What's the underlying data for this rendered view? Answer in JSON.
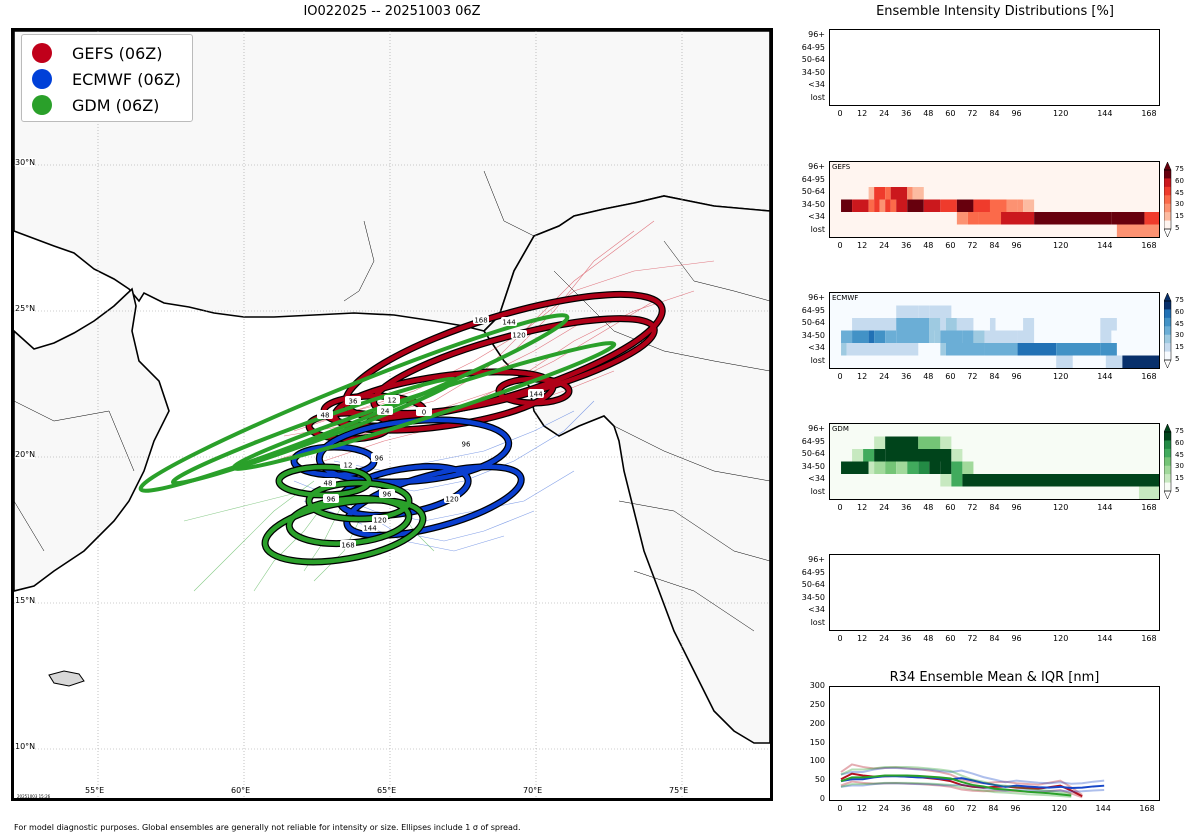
{
  "map": {
    "title": "IO022025 -- 20251003 06Z",
    "legend": [
      {
        "label": "GEFS (06Z)",
        "color": "#c0001a"
      },
      {
        "label": "ECMWF (06Z)",
        "color": "#0040d8"
      },
      {
        "label": "GDM (06Z)",
        "color": "#2aa02a"
      }
    ],
    "lat_labels": [
      "30°N",
      "25°N",
      "20°N",
      "15°N",
      "10°N"
    ],
    "lon_labels": [
      "55°E",
      "60°E",
      "65°E",
      "70°E",
      "75°E"
    ],
    "timestamp": "20251003 15:26",
    "footer": "For model diagnostic purposes. Global ensembles are generally not reliable for intensity or size. Ellipses include 1 σ of spread.",
    "ellipse_labels": {
      "gefs": [
        "168",
        "144",
        "120",
        "144",
        "36",
        "24",
        "12",
        "48",
        "0"
      ],
      "ecmwf": [
        "96",
        "96",
        "96",
        "120",
        "12"
      ],
      "gdm": [
        "96",
        "120",
        "144",
        "168",
        "48"
      ]
    }
  },
  "chart_data": [
    {
      "type": "heatmap",
      "title": "Ensemble Intensity Distributions [%]",
      "name": "",
      "x_ticks": [
        "0",
        "12",
        "24",
        "36",
        "48",
        "60",
        "72",
        "84",
        "96",
        "120",
        "144",
        "168"
      ],
      "y_categories": [
        "96+",
        "64-95",
        "50-64",
        "34-50",
        "<34",
        "lost"
      ],
      "values": []
    },
    {
      "type": "heatmap",
      "name": "GEFS",
      "colormap": "reds",
      "x_ticks": [
        "0",
        "12",
        "24",
        "36",
        "48",
        "60",
        "72",
        "84",
        "96",
        "120",
        "144",
        "168"
      ],
      "y_categories": [
        "96+",
        "64-95",
        "50-64",
        "34-50",
        "<34",
        "lost"
      ],
      "colorbar_ticks": [
        "75",
        "60",
        "45",
        "30",
        "15",
        "5"
      ],
      "rows": {
        "96+": [],
        "64-95": [],
        "50-64": [
          [
            15,
            18,
            15
          ],
          [
            18,
            24,
            55
          ],
          [
            24,
            27,
            45
          ],
          [
            27,
            36,
            70
          ],
          [
            36,
            39,
            30
          ],
          [
            39,
            45,
            15
          ]
        ],
        "34-50": [
          [
            0,
            6,
            80
          ],
          [
            6,
            15,
            65
          ],
          [
            15,
            18,
            45
          ],
          [
            18,
            21,
            60
          ],
          [
            21,
            24,
            30
          ],
          [
            24,
            27,
            60
          ],
          [
            27,
            30,
            45
          ],
          [
            30,
            36,
            70
          ],
          [
            36,
            45,
            75
          ],
          [
            45,
            54,
            70
          ],
          [
            54,
            63,
            55
          ],
          [
            63,
            72,
            75
          ],
          [
            72,
            81,
            50
          ],
          [
            81,
            90,
            35
          ],
          [
            90,
            96,
            20
          ],
          [
            96,
            99,
            30
          ],
          [
            99,
            105,
            15
          ]
        ],
        "<34": [
          [
            63,
            69,
            25
          ],
          [
            69,
            75,
            45
          ],
          [
            75,
            87,
            35
          ],
          [
            87,
            105,
            65
          ],
          [
            105,
            147,
            78
          ],
          [
            147,
            165,
            78
          ],
          [
            165,
            174,
            55
          ]
        ],
        "lost": [
          [
            150,
            174,
            20
          ]
        ]
      }
    },
    {
      "type": "heatmap",
      "name": "ECMWF",
      "colormap": "blues",
      "x_ticks": [
        "0",
        "12",
        "24",
        "36",
        "48",
        "60",
        "72",
        "84",
        "96",
        "120",
        "144",
        "168"
      ],
      "y_categories": [
        "96+",
        "64-95",
        "50-64",
        "34-50",
        "<34",
        "lost"
      ],
      "colorbar_ticks": [
        "75",
        "60",
        "45",
        "30",
        "15",
        "5"
      ],
      "rows": {
        "96+": [],
        "64-95": [
          [
            30,
            42,
            15
          ],
          [
            42,
            48,
            10
          ],
          [
            48,
            60,
            10
          ]
        ],
        "50-64": [
          [
            6,
            30,
            15
          ],
          [
            30,
            48,
            35
          ],
          [
            48,
            54,
            20
          ],
          [
            54,
            57,
            10
          ],
          [
            57,
            63,
            25
          ],
          [
            63,
            72,
            15
          ],
          [
            81,
            84,
            15
          ],
          [
            99,
            105,
            10
          ],
          [
            141,
            150,
            10
          ]
        ],
        "34-50": [
          [
            0,
            6,
            35
          ],
          [
            6,
            15,
            55
          ],
          [
            15,
            18,
            65
          ],
          [
            18,
            24,
            55
          ],
          [
            24,
            30,
            40
          ],
          [
            30,
            48,
            35
          ],
          [
            48,
            51,
            20
          ],
          [
            51,
            54,
            30
          ],
          [
            54,
            66,
            40
          ],
          [
            66,
            72,
            35
          ],
          [
            72,
            78,
            30
          ],
          [
            78,
            96,
            15
          ],
          [
            96,
            105,
            10
          ],
          [
            141,
            147,
            10
          ]
        ],
        "<34": [
          [
            0,
            3,
            25
          ],
          [
            3,
            42,
            15
          ],
          [
            54,
            57,
            25
          ],
          [
            57,
            78,
            35
          ],
          [
            78,
            84,
            40
          ],
          [
            84,
            96,
            45
          ],
          [
            96,
            117,
            70
          ],
          [
            117,
            141,
            50
          ],
          [
            141,
            150,
            55
          ]
        ],
        "lost": [
          [
            117,
            126,
            10
          ],
          [
            144,
            153,
            15
          ],
          [
            153,
            174,
            75
          ]
        ]
      }
    },
    {
      "type": "heatmap",
      "name": "GDM",
      "colormap": "greens",
      "x_ticks": [
        "0",
        "12",
        "24",
        "36",
        "48",
        "60",
        "72",
        "84",
        "96",
        "120",
        "144",
        "168"
      ],
      "y_categories": [
        "96+",
        "64-95",
        "50-64",
        "34-50",
        "<34",
        "lost"
      ],
      "colorbar_ticks": [
        "75",
        "60",
        "45",
        "30",
        "15",
        "5"
      ],
      "rows": {
        "96+": [],
        "64-95": [
          [
            18,
            24,
            15
          ],
          [
            24,
            42,
            78
          ],
          [
            42,
            54,
            35
          ],
          [
            54,
            60,
            15
          ]
        ],
        "50-64": [
          [
            6,
            12,
            15
          ],
          [
            12,
            18,
            55
          ],
          [
            18,
            24,
            78
          ],
          [
            24,
            60,
            78
          ],
          [
            60,
            66,
            15
          ]
        ],
        "34-50": [
          [
            0,
            15,
            78
          ],
          [
            15,
            18,
            15
          ],
          [
            18,
            24,
            30
          ],
          [
            24,
            30,
            35
          ],
          [
            30,
            36,
            25
          ],
          [
            36,
            42,
            55
          ],
          [
            42,
            48,
            65
          ],
          [
            48,
            54,
            78
          ],
          [
            54,
            60,
            78
          ],
          [
            60,
            66,
            60
          ],
          [
            66,
            72,
            30
          ]
        ],
        "<34": [
          [
            54,
            60,
            15
          ],
          [
            60,
            66,
            55
          ],
          [
            66,
            174,
            78
          ]
        ],
        "lost": [
          [
            162,
            174,
            15
          ],
          [
            174,
            177,
            30
          ]
        ]
      }
    },
    {
      "type": "heatmap",
      "name": "",
      "x_ticks": [
        "0",
        "12",
        "24",
        "36",
        "48",
        "60",
        "72",
        "84",
        "96",
        "120",
        "144",
        "168"
      ],
      "y_categories": [
        "96+",
        "64-95",
        "50-64",
        "34-50",
        "<34",
        "lost"
      ],
      "values": []
    },
    {
      "type": "line",
      "title": "R34 Ensemble Mean & IQR [nm]",
      "x_ticks": [
        "0",
        "12",
        "24",
        "36",
        "48",
        "60",
        "72",
        "84",
        "96",
        "120",
        "144",
        "168"
      ],
      "y_ticks": [
        "0",
        "50",
        "100",
        "150",
        "200",
        "250",
        "300"
      ],
      "ylim": [
        0,
        300
      ],
      "xlim": [
        -6,
        174
      ],
      "series": [
        {
          "name": "GEFS",
          "color": "#b3121f",
          "x": [
            0,
            6,
            12,
            18,
            24,
            30,
            36,
            42,
            48,
            54,
            60,
            66,
            72,
            78,
            84,
            90,
            96,
            108,
            120,
            126,
            132
          ],
          "y": [
            55,
            70,
            65,
            62,
            63,
            64,
            62,
            61,
            58,
            55,
            50,
            40,
            35,
            33,
            35,
            36,
            33,
            30,
            38,
            25,
            10
          ]
        },
        {
          "name": "ECMWF",
          "color": "#1747c8",
          "x": [
            0,
            6,
            12,
            18,
            24,
            30,
            36,
            42,
            48,
            54,
            60,
            66,
            72,
            78,
            84,
            90,
            96,
            102,
            108,
            114,
            120,
            126,
            132,
            138,
            144
          ],
          "y": [
            50,
            55,
            55,
            60,
            63,
            63,
            62,
            60,
            60,
            57,
            55,
            58,
            52,
            45,
            40,
            35,
            38,
            36,
            34,
            33,
            35,
            32,
            33,
            36,
            38
          ]
        },
        {
          "name": "GDM",
          "color": "#2aa02a",
          "x": [
            0,
            6,
            12,
            18,
            24,
            30,
            36,
            42,
            48,
            54,
            60,
            66,
            72,
            78,
            84,
            90,
            96,
            102,
            108,
            114,
            120,
            126
          ],
          "y": [
            50,
            60,
            60,
            62,
            65,
            65,
            65,
            64,
            62,
            60,
            57,
            48,
            40,
            36,
            30,
            28,
            25,
            22,
            20,
            18,
            15,
            12
          ]
        }
      ]
    }
  ]
}
